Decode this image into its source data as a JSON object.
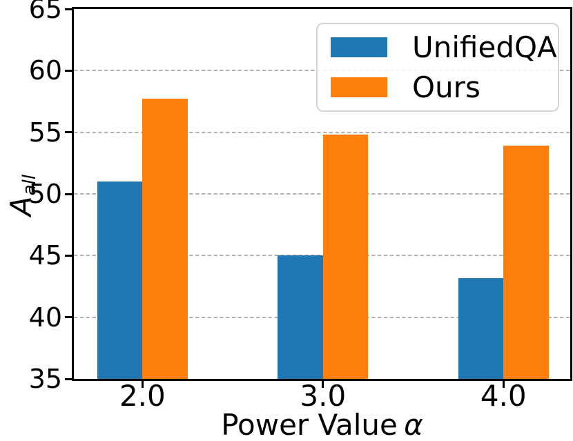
{
  "chart_data": {
    "type": "bar",
    "title": "",
    "xlabel": "Power Value α",
    "xlabel_text": "Power Value",
    "xlabel_symbol": "α",
    "ylabel": "A_all",
    "ylabel_base": "A",
    "ylabel_sub": "all",
    "categories": [
      "2.0",
      "3.0",
      "4.0"
    ],
    "x": [
      2,
      3,
      4
    ],
    "series": [
      {
        "name": "UnifiedQA",
        "color": "#1f77b4",
        "values": [
          51.0,
          45.0,
          43.2
        ]
      },
      {
        "name": "Ours",
        "color": "#ff7f0e",
        "values": [
          57.7,
          54.8,
          53.9
        ]
      }
    ],
    "bar_width": 0.25,
    "xlim": [
      1.62,
      4.37
    ],
    "ylim": [
      35,
      65
    ],
    "yticks": [
      35,
      40,
      45,
      50,
      55,
      60,
      65
    ],
    "ytick_labels": [
      "35",
      "40",
      "45",
      "50",
      "55",
      "60",
      "65"
    ],
    "gridlines_at": [
      40,
      45,
      50,
      55,
      60
    ],
    "grid_style": "dashed",
    "grid_axis": "y",
    "legend_position": "upper right",
    "legend_entries": [
      "UnifiedQA",
      "Ours"
    ]
  },
  "colors": {
    "background": "#ffffff",
    "text": "#000000",
    "grid": "#b3b3b3",
    "spine": "#000000",
    "legend_border": "#d5d5d5"
  }
}
